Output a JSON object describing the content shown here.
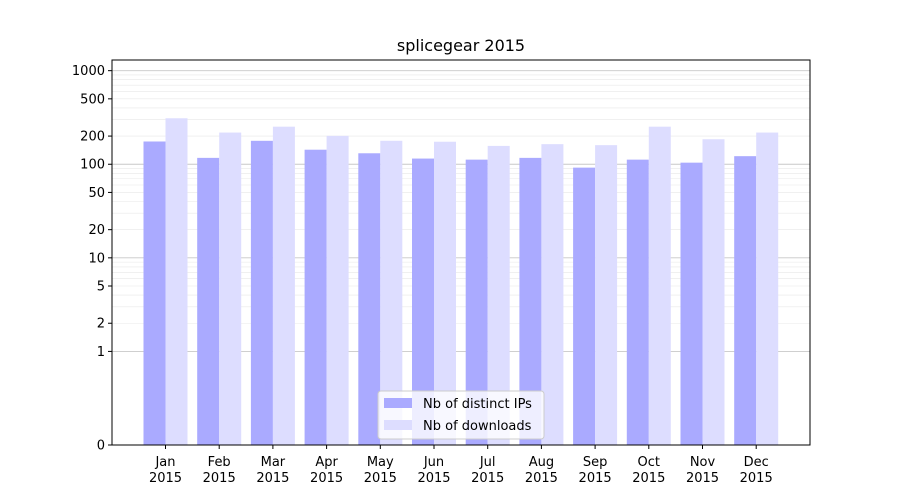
{
  "chart_data": {
    "type": "bar",
    "title": "splicegear 2015",
    "xlabel": "",
    "ylabel": "",
    "y_scale": "symlog",
    "ylim": [
      0,
      1300
    ],
    "y_ticks": [
      0,
      1,
      2,
      5,
      10,
      20,
      50,
      100,
      200,
      500,
      1000
    ],
    "y_tick_labels": [
      "0",
      "1",
      "2",
      "5",
      "10",
      "20",
      "50",
      "100",
      "200",
      "500",
      "1000"
    ],
    "grid": true,
    "legend_position": "bottom-center",
    "categories": [
      "Jan\n2015",
      "Feb\n2015",
      "Mar\n2015",
      "Apr\n2015",
      "May\n2015",
      "Jun\n2015",
      "Jul\n2015",
      "Aug\n2015",
      "Sep\n2015",
      "Oct\n2015",
      "Nov\n2015",
      "Dec\n2015"
    ],
    "series": [
      {
        "name": "Nb of distinct IPs",
        "color": "#aaaaff",
        "values": [
          175,
          117,
          178,
          143,
          131,
          115,
          112,
          117,
          92,
          112,
          104,
          122
        ]
      },
      {
        "name": "Nb of downloads",
        "color": "#ddddff",
        "values": [
          310,
          218,
          252,
          201,
          178,
          174,
          157,
          164,
          160,
          252,
          185,
          218
        ]
      }
    ]
  }
}
